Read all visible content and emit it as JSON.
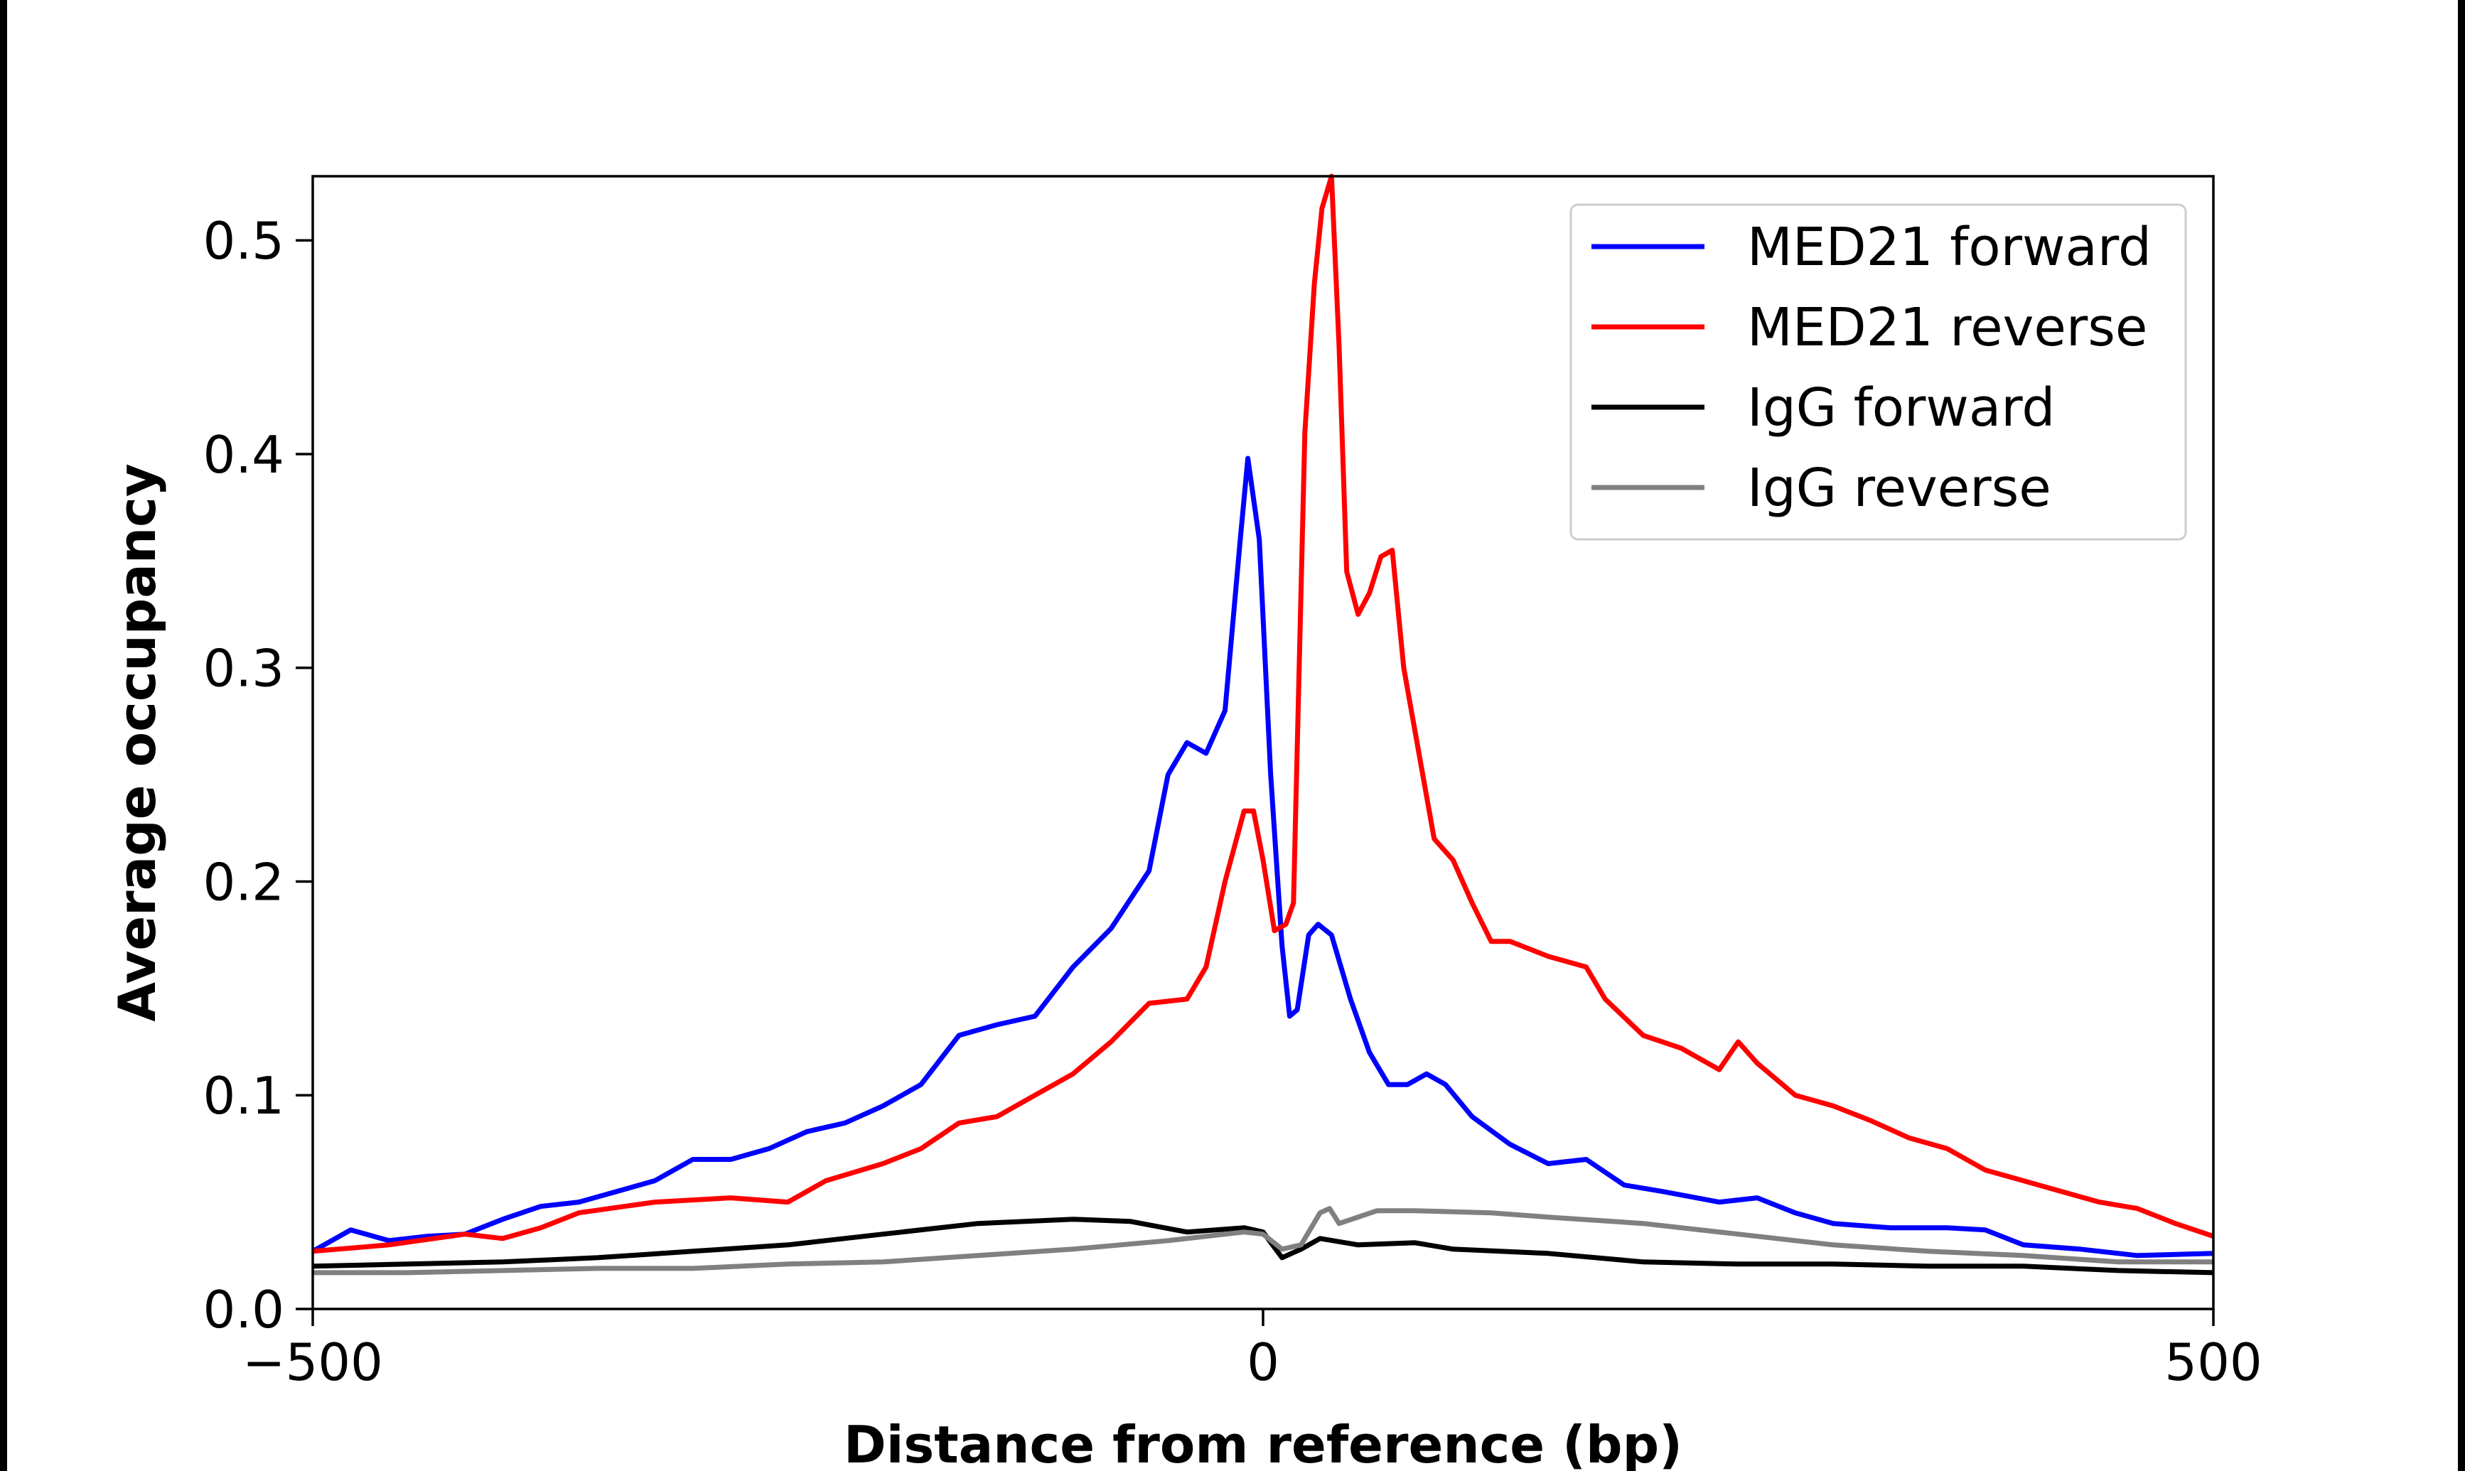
{
  "chart_data": {
    "type": "line",
    "title": "",
    "xlabel": "Distance from reference (bp)",
    "ylabel": "Average occupancy",
    "xlim": [
      -500,
      500
    ],
    "ylim": [
      0,
      0.53
    ],
    "xticks": [
      -500,
      0,
      500
    ],
    "xtick_labels": [
      "−500",
      "0",
      "500"
    ],
    "yticks": [
      0.0,
      0.1,
      0.2,
      0.3,
      0.4,
      0.5
    ],
    "ytick_labels": [
      "0.0",
      "0.1",
      "0.2",
      "0.3",
      "0.4",
      "0.5"
    ],
    "grid": false,
    "legend_position": "top-right",
    "series": [
      {
        "name": "MED21 forward",
        "color": "#0000ff",
        "x": [
          -500,
          -480,
          -460,
          -440,
          -420,
          -400,
          -380,
          -360,
          -340,
          -320,
          -300,
          -280,
          -260,
          -240,
          -220,
          -200,
          -180,
          -160,
          -140,
          -120,
          -100,
          -80,
          -60,
          -50,
          -40,
          -30,
          -20,
          -12,
          -8,
          -2,
          4,
          10,
          14,
          18,
          24,
          29,
          36,
          46,
          56,
          66,
          76,
          86,
          96,
          110,
          130,
          150,
          170,
          190,
          210,
          240,
          260,
          280,
          300,
          330,
          360,
          380,
          400,
          430,
          460,
          500
        ],
        "y": [
          0.027,
          0.037,
          0.032,
          0.034,
          0.035,
          0.042,
          0.048,
          0.05,
          0.055,
          0.06,
          0.07,
          0.07,
          0.075,
          0.083,
          0.087,
          0.095,
          0.105,
          0.128,
          0.133,
          0.137,
          0.16,
          0.178,
          0.205,
          0.25,
          0.265,
          0.26,
          0.28,
          0.36,
          0.398,
          0.36,
          0.25,
          0.17,
          0.137,
          0.14,
          0.175,
          0.18,
          0.175,
          0.145,
          0.12,
          0.105,
          0.105,
          0.11,
          0.105,
          0.09,
          0.077,
          0.068,
          0.07,
          0.058,
          0.055,
          0.05,
          0.052,
          0.045,
          0.04,
          0.038,
          0.038,
          0.037,
          0.03,
          0.028,
          0.025,
          0.026
        ]
      },
      {
        "name": "MED21 reverse",
        "color": "#ff0000",
        "x": [
          -500,
          -460,
          -420,
          -400,
          -380,
          -360,
          -320,
          -280,
          -250,
          -230,
          -200,
          -180,
          -160,
          -140,
          -120,
          -100,
          -80,
          -60,
          -40,
          -30,
          -20,
          -10,
          -5,
          0,
          6,
          12,
          16,
          22,
          27,
          31,
          36,
          40,
          44,
          50,
          56,
          62,
          68,
          74,
          82,
          90,
          100,
          110,
          120,
          130,
          150,
          170,
          180,
          200,
          220,
          240,
          250,
          260,
          280,
          300,
          320,
          340,
          360,
          380,
          400,
          420,
          440,
          460,
          480,
          500
        ],
        "y": [
          0.027,
          0.03,
          0.035,
          0.033,
          0.038,
          0.045,
          0.05,
          0.052,
          0.05,
          0.06,
          0.068,
          0.075,
          0.087,
          0.09,
          0.1,
          0.11,
          0.125,
          0.143,
          0.145,
          0.16,
          0.2,
          0.233,
          0.233,
          0.21,
          0.177,
          0.18,
          0.19,
          0.41,
          0.48,
          0.515,
          0.53,
          0.45,
          0.345,
          0.325,
          0.335,
          0.352,
          0.355,
          0.3,
          0.26,
          0.22,
          0.21,
          0.19,
          0.172,
          0.172,
          0.165,
          0.16,
          0.145,
          0.128,
          0.122,
          0.112,
          0.125,
          0.115,
          0.1,
          0.095,
          0.088,
          0.08,
          0.075,
          0.065,
          0.06,
          0.055,
          0.05,
          0.047,
          0.04,
          0.034
        ]
      },
      {
        "name": "IgG forward",
        "color": "#000000",
        "x": [
          -500,
          -450,
          -400,
          -350,
          -300,
          -250,
          -200,
          -150,
          -100,
          -70,
          -40,
          -10,
          0,
          10,
          20,
          30,
          50,
          80,
          100,
          150,
          200,
          250,
          300,
          350,
          400,
          450,
          500
        ],
        "y": [
          0.02,
          0.021,
          0.022,
          0.024,
          0.027,
          0.03,
          0.035,
          0.04,
          0.042,
          0.041,
          0.036,
          0.038,
          0.036,
          0.024,
          0.028,
          0.033,
          0.03,
          0.031,
          0.028,
          0.026,
          0.022,
          0.021,
          0.021,
          0.02,
          0.02,
          0.018,
          0.017
        ]
      },
      {
        "name": "IgG reverse",
        "color": "#808080",
        "x": [
          -500,
          -450,
          -400,
          -350,
          -300,
          -250,
          -200,
          -150,
          -100,
          -50,
          -10,
          0,
          10,
          20,
          30,
          35,
          40,
          60,
          80,
          120,
          150,
          200,
          250,
          300,
          350,
          400,
          450,
          500
        ],
        "y": [
          0.017,
          0.017,
          0.018,
          0.019,
          0.019,
          0.021,
          0.022,
          0.025,
          0.028,
          0.032,
          0.036,
          0.035,
          0.028,
          0.03,
          0.045,
          0.047,
          0.04,
          0.046,
          0.046,
          0.045,
          0.043,
          0.04,
          0.035,
          0.03,
          0.027,
          0.025,
          0.022,
          0.022
        ]
      }
    ]
  }
}
